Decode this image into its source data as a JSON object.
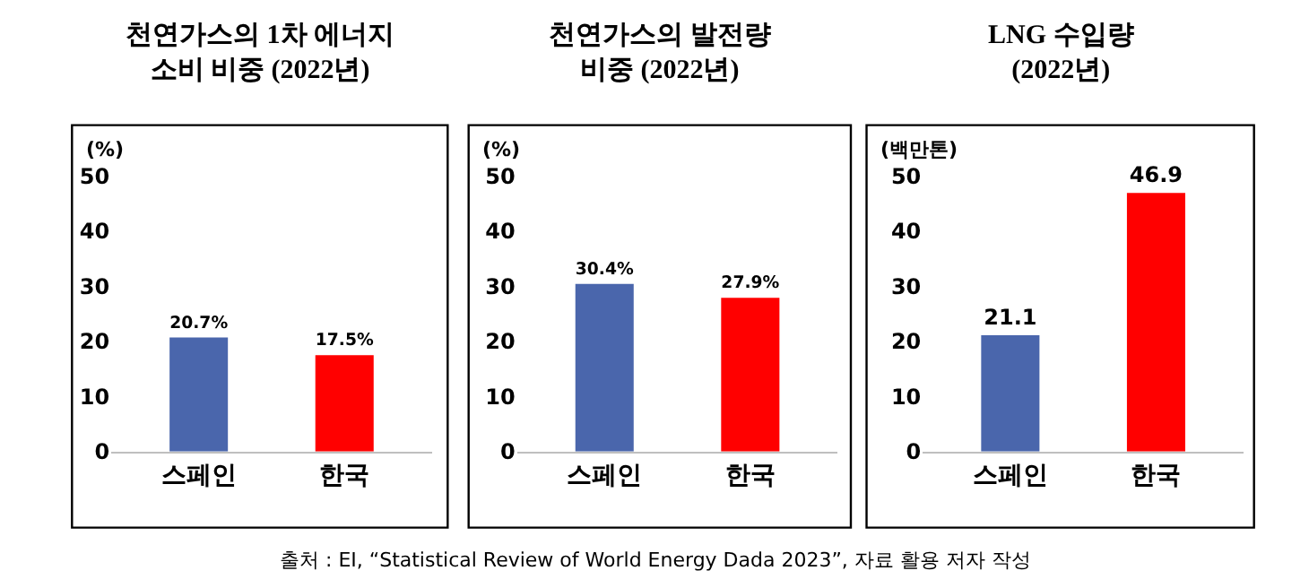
{
  "chart_data": [
    {
      "type": "bar",
      "title": "천연가스의 1차 에너지\n소비 비중 (2022년)",
      "ylabel": "(%)",
      "categories": [
        "스페인",
        "한국"
      ],
      "values": [
        20.7,
        17.5
      ],
      "colors": [
        "#4a66ac",
        "#ff0000"
      ],
      "value_labels": [
        "20.7%",
        "17.5%"
      ],
      "ylim": [
        0,
        50
      ],
      "yticks": [
        0,
        10,
        20,
        30,
        40,
        50
      ],
      "annotations": [
        "출처 : EI, “Statistical Review of World Energy Dada 2023”, 자료 활용 저자 작성"
      ]
    },
    {
      "type": "bar",
      "title": "천연가스의 발전량\n비중 (2022년)",
      "ylabel": "(%)",
      "categories": [
        "스페인",
        "한국"
      ],
      "values": [
        30.4,
        27.9
      ],
      "colors": [
        "#4a66ac",
        "#ff0000"
      ],
      "value_labels": [
        "30.4%",
        "27.9%"
      ],
      "ylim": [
        0,
        50
      ],
      "yticks": [
        0,
        10,
        20,
        30,
        40,
        50
      ]
    },
    {
      "type": "bar",
      "title": "LNG 수입량\n(2022년)",
      "ylabel": "(백만톤)",
      "categories": [
        "스페인",
        "한국"
      ],
      "values": [
        21.1,
        46.9
      ],
      "colors": [
        "#4a66ac",
        "#ff0000"
      ],
      "data_labels": true,
      "ylim": [
        0,
        50
      ],
      "yticks": [
        0,
        10,
        20,
        30,
        40,
        50
      ]
    }
  ]
}
